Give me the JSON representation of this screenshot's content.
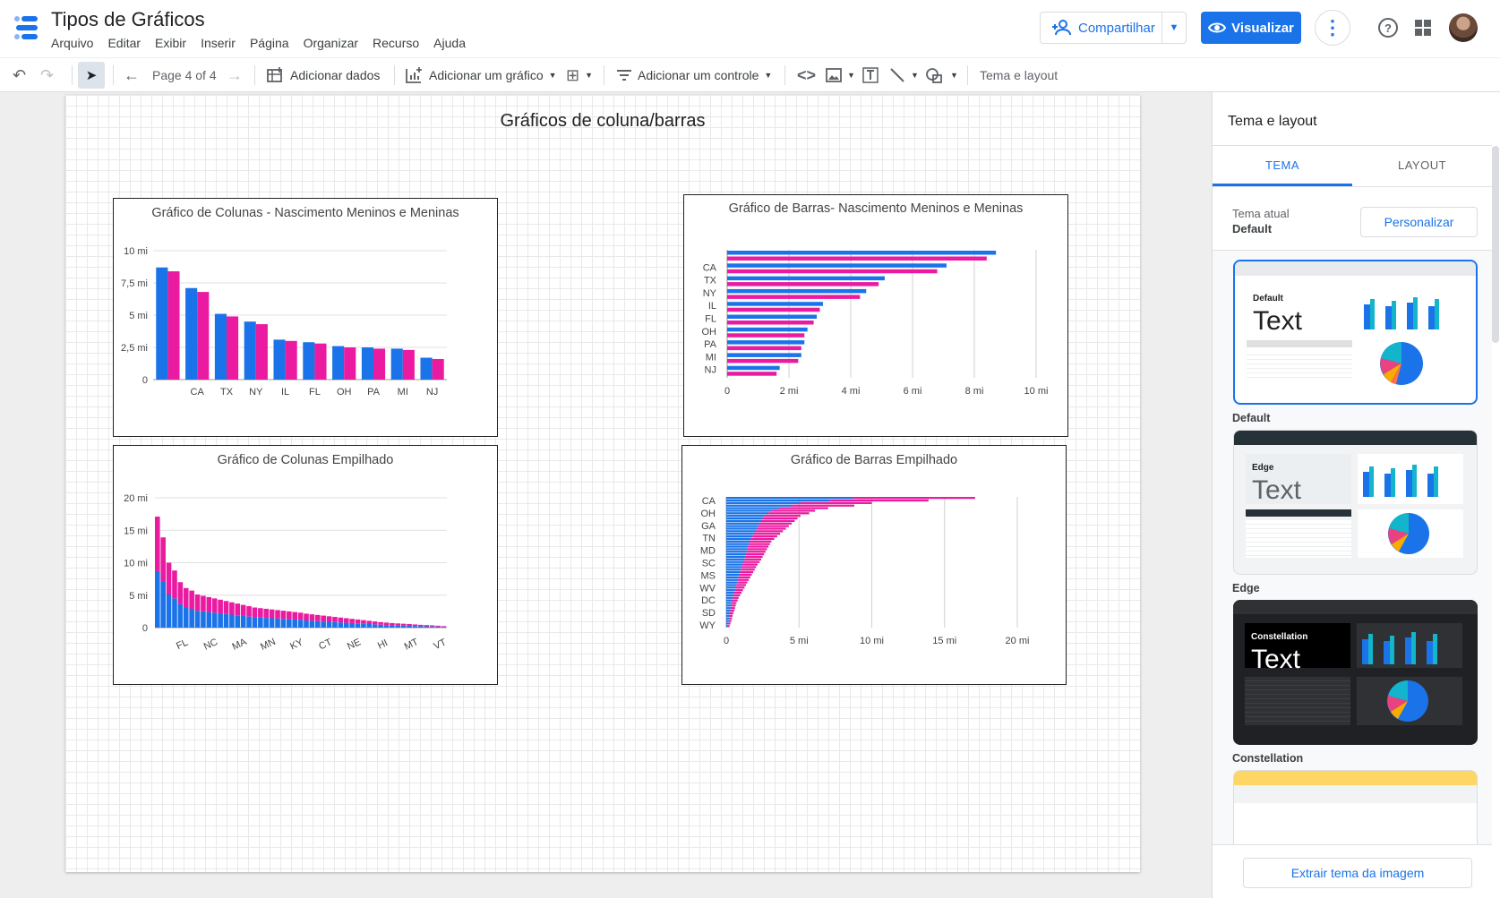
{
  "app": {
    "title": "Tipos de Gráficos",
    "menu": [
      "Arquivo",
      "Editar",
      "Exibir",
      "Inserir",
      "Página",
      "Organizar",
      "Recurso",
      "Ajuda"
    ],
    "share_label": "Compartilhar",
    "view_label": "Visualizar"
  },
  "toolbar": {
    "page_indicator": "Page 4 of 4",
    "add_data": "Adicionar dados",
    "add_chart": "Adicionar um gráfico",
    "add_control": "Adicionar um controle",
    "theme_layout": "Tema e layout"
  },
  "page": {
    "title": "Gráficos de coluna/barras"
  },
  "colors": {
    "blue": "#1a73e8",
    "pink": "#ea1ba0",
    "accent": "#1a73e8"
  },
  "chart_data": [
    {
      "type": "bar",
      "orientation": "vertical",
      "title": "Gráfico de Colunas - Nascimento Meninos e Meninas",
      "categories": [
        "",
        "CA",
        "TX",
        "NY",
        "IL",
        "FL",
        "OH",
        "PA",
        "MI",
        "NJ"
      ],
      "y_ticks": [
        "0",
        "2,5 mi",
        "5 mi",
        "7,5 mi",
        "10 mi"
      ],
      "ylim": [
        0,
        10
      ],
      "series": [
        {
          "values": [
            8.7,
            7.1,
            5.1,
            4.5,
            3.1,
            2.9,
            2.6,
            2.5,
            2.4,
            1.7
          ]
        },
        {
          "values": [
            8.4,
            6.8,
            4.9,
            4.3,
            3.0,
            2.8,
            2.5,
            2.4,
            2.3,
            1.6
          ]
        }
      ]
    },
    {
      "type": "bar",
      "orientation": "horizontal",
      "title": "Gráfico de Barras- Nascimento Meninos e Meninas",
      "categories": [
        "",
        "CA",
        "TX",
        "NY",
        "IL",
        "FL",
        "OH",
        "PA",
        "MI",
        "NJ"
      ],
      "x_ticks": [
        "0",
        "2 mi",
        "4 mi",
        "6 mi",
        "8 mi",
        "10 mi"
      ],
      "xlim": [
        0,
        10
      ],
      "series": [
        {
          "values": [
            8.7,
            7.1,
            5.1,
            4.5,
            3.1,
            2.9,
            2.6,
            2.5,
            2.4,
            1.7
          ]
        },
        {
          "values": [
            8.4,
            6.8,
            4.9,
            4.3,
            3.0,
            2.8,
            2.5,
            2.4,
            2.3,
            1.6
          ]
        }
      ]
    },
    {
      "type": "bar",
      "orientation": "vertical",
      "stacked": true,
      "title": "Gráfico de Colunas Empilhado",
      "x_tick_labels": [
        "FL",
        "NC",
        "MA",
        "MN",
        "KY",
        "CT",
        "NE",
        "HI",
        "MT",
        "VT"
      ],
      "y_ticks": [
        "0",
        "5 mi",
        "10 mi",
        "15 mi",
        "20 mi"
      ],
      "ylim": [
        0,
        20
      ],
      "series": [
        {
          "values": [
            8.7,
            7.1,
            5.1,
            4.5,
            3.6,
            3.1,
            2.9,
            2.6,
            2.5,
            2.4,
            2.3,
            2.2,
            2.1,
            2.0,
            1.9,
            1.8,
            1.7,
            1.6,
            1.55,
            1.5,
            1.45,
            1.4,
            1.35,
            1.3,
            1.25,
            1.2,
            1.1,
            1.05,
            1.0,
            0.95,
            0.9,
            0.85,
            0.8,
            0.75,
            0.7,
            0.65,
            0.6,
            0.55,
            0.5,
            0.45,
            0.4,
            0.35,
            0.33,
            0.3,
            0.28,
            0.25,
            0.22,
            0.2,
            0.18,
            0.15,
            0.12
          ]
        },
        {
          "values": [
            8.4,
            6.8,
            4.9,
            4.3,
            3.4,
            3.0,
            2.8,
            2.5,
            2.4,
            2.3,
            2.2,
            2.1,
            2.0,
            1.9,
            1.8,
            1.7,
            1.6,
            1.5,
            1.45,
            1.4,
            1.35,
            1.3,
            1.25,
            1.2,
            1.15,
            1.1,
            1.05,
            1.0,
            0.95,
            0.9,
            0.85,
            0.8,
            0.75,
            0.7,
            0.65,
            0.6,
            0.55,
            0.5,
            0.45,
            0.4,
            0.38,
            0.35,
            0.32,
            0.3,
            0.27,
            0.24,
            0.21,
            0.19,
            0.17,
            0.14,
            0.11
          ]
        }
      ]
    },
    {
      "type": "bar",
      "orientation": "horizontal",
      "stacked": true,
      "title": "Gráfico de Barras Empilhado",
      "y_tick_labels": [
        "CA",
        "OH",
        "GA",
        "TN",
        "MD",
        "SC",
        "MS",
        "WV",
        "DC",
        "SD",
        "WY"
      ],
      "x_ticks": [
        "0",
        "5 mi",
        "10 mi",
        "15 mi",
        "20 mi"
      ],
      "xlim": [
        0,
        20
      ],
      "series": [
        {
          "values": [
            8.7,
            7.1,
            5.1,
            4.5,
            3.6,
            3.1,
            2.9,
            2.6,
            2.5,
            2.4,
            2.3,
            2.2,
            2.1,
            2.0,
            1.9,
            1.8,
            1.7,
            1.6,
            1.55,
            1.5,
            1.45,
            1.4,
            1.35,
            1.3,
            1.25,
            1.2,
            1.1,
            1.05,
            1.0,
            0.95,
            0.9,
            0.85,
            0.8,
            0.75,
            0.7,
            0.65,
            0.6,
            0.55,
            0.5,
            0.45,
            0.4,
            0.35,
            0.33,
            0.3,
            0.28,
            0.25,
            0.22,
            0.2,
            0.18,
            0.15,
            0.12
          ]
        },
        {
          "values": [
            8.4,
            6.8,
            4.9,
            4.3,
            3.4,
            3.0,
            2.8,
            2.5,
            2.4,
            2.3,
            2.2,
            2.1,
            2.0,
            1.9,
            1.8,
            1.7,
            1.6,
            1.5,
            1.45,
            1.4,
            1.35,
            1.3,
            1.25,
            1.2,
            1.15,
            1.1,
            1.05,
            1.0,
            0.95,
            0.9,
            0.85,
            0.8,
            0.75,
            0.7,
            0.65,
            0.6,
            0.55,
            0.5,
            0.45,
            0.4,
            0.38,
            0.35,
            0.32,
            0.3,
            0.27,
            0.24,
            0.21,
            0.19,
            0.17,
            0.14,
            0.11
          ]
        }
      ]
    }
  ],
  "panel": {
    "title": "Tema e layout",
    "tabs": [
      "TEMA",
      "LAYOUT"
    ],
    "current_theme_label": "Tema atual",
    "current_theme_value": "Default",
    "customize_label": "Personalizar",
    "themes": [
      {
        "name": "Default",
        "card_label": "Default",
        "sample_text": "Text"
      },
      {
        "name": "Edge",
        "card_label": "Edge",
        "sample_text": "Text"
      },
      {
        "name": "Constellation",
        "card_label": "Constellation",
        "sample_text": "Text"
      }
    ],
    "extract_label": "Extrair tema da imagem"
  }
}
